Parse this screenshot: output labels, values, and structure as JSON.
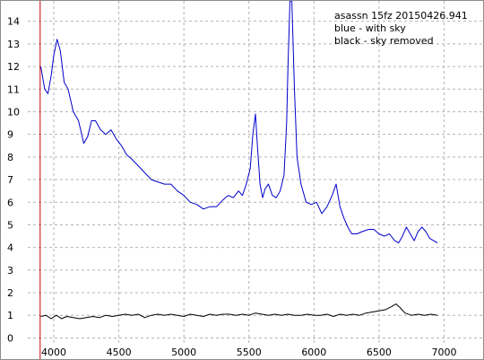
{
  "chart_data": {
    "type": "line",
    "title": "",
    "xlabel": "",
    "ylabel": "",
    "xlim": [
      3800,
      7300
    ],
    "ylim": [
      -0.3,
      14.9
    ],
    "xticks": [
      4000,
      4500,
      5000,
      5500,
      6000,
      6500,
      7000
    ],
    "xtick_labels": [
      "4000",
      "4500",
      "5000",
      "5500",
      "6000",
      "6500",
      "7000"
    ],
    "yticks": [
      0,
      1,
      2,
      3,
      4,
      5,
      6,
      7,
      8,
      9,
      10,
      11,
      12,
      13,
      14
    ],
    "ytick_labels": [
      "0",
      "1",
      "2",
      "3",
      "4",
      "5",
      "6",
      "7",
      "8",
      "9",
      "10",
      "11",
      "12",
      "13",
      "14"
    ],
    "grid": true,
    "vertical_marker": {
      "x": 3895,
      "color": "#cc0000"
    },
    "annotations": [
      "asassn 15fz  20150426.941",
      "blue - with sky",
      "black - sky removed"
    ],
    "legend_placement": "top-right",
    "series": [
      {
        "color": "#0000cc",
        "points": [
          [
            3900,
            12.0
          ],
          [
            3930,
            11.0
          ],
          [
            3955,
            10.8
          ],
          [
            3980,
            11.6
          ],
          [
            4000,
            12.5
          ],
          [
            4025,
            13.2
          ],
          [
            4050,
            12.7
          ],
          [
            4080,
            11.3
          ],
          [
            4110,
            11.0
          ],
          [
            4150,
            10.0
          ],
          [
            4190,
            9.6
          ],
          [
            4230,
            8.6
          ],
          [
            4260,
            8.9
          ],
          [
            4290,
            9.6
          ],
          [
            4320,
            9.6
          ],
          [
            4360,
            9.2
          ],
          [
            4400,
            9.0
          ],
          [
            4440,
            9.2
          ],
          [
            4480,
            8.8
          ],
          [
            4520,
            8.5
          ],
          [
            4560,
            8.1
          ],
          [
            4600,
            7.9
          ],
          [
            4650,
            7.6
          ],
          [
            4700,
            7.3
          ],
          [
            4750,
            7.0
          ],
          [
            4800,
            6.9
          ],
          [
            4850,
            6.8
          ],
          [
            4900,
            6.8
          ],
          [
            4950,
            6.5
          ],
          [
            5000,
            6.3
          ],
          [
            5050,
            6.0
          ],
          [
            5100,
            5.9
          ],
          [
            5150,
            5.7
          ],
          [
            5200,
            5.8
          ],
          [
            5250,
            5.8
          ],
          [
            5300,
            6.1
          ],
          [
            5340,
            6.3
          ],
          [
            5380,
            6.2
          ],
          [
            5420,
            6.5
          ],
          [
            5450,
            6.3
          ],
          [
            5480,
            6.8
          ],
          [
            5510,
            7.5
          ],
          [
            5530,
            9.0
          ],
          [
            5550,
            9.9
          ],
          [
            5565,
            8.5
          ],
          [
            5585,
            6.8
          ],
          [
            5605,
            6.2
          ],
          [
            5625,
            6.6
          ],
          [
            5650,
            6.8
          ],
          [
            5680,
            6.3
          ],
          [
            5710,
            6.2
          ],
          [
            5740,
            6.5
          ],
          [
            5770,
            7.2
          ],
          [
            5790,
            9.5
          ],
          [
            5800,
            12.0
          ],
          [
            5815,
            14.9
          ],
          [
            5830,
            14.9
          ],
          [
            5850,
            11.0
          ],
          [
            5870,
            8.0
          ],
          [
            5900,
            6.8
          ],
          [
            5940,
            6.0
          ],
          [
            5980,
            5.9
          ],
          [
            6020,
            6.0
          ],
          [
            6060,
            5.5
          ],
          [
            6100,
            5.8
          ],
          [
            6140,
            6.3
          ],
          [
            6170,
            6.8
          ],
          [
            6200,
            5.8
          ],
          [
            6230,
            5.3
          ],
          [
            6260,
            4.9
          ],
          [
            6290,
            4.6
          ],
          [
            6330,
            4.6
          ],
          [
            6370,
            4.7
          ],
          [
            6420,
            4.8
          ],
          [
            6460,
            4.8
          ],
          [
            6500,
            4.6
          ],
          [
            6540,
            4.5
          ],
          [
            6580,
            4.6
          ],
          [
            6620,
            4.3
          ],
          [
            6650,
            4.2
          ],
          [
            6680,
            4.5
          ],
          [
            6710,
            4.9
          ],
          [
            6740,
            4.6
          ],
          [
            6770,
            4.3
          ],
          [
            6800,
            4.7
          ],
          [
            6830,
            4.9
          ],
          [
            6860,
            4.7
          ],
          [
            6890,
            4.4
          ],
          [
            6920,
            4.3
          ],
          [
            6950,
            4.2
          ]
        ]
      },
      {
        "color": "#000000",
        "points": [
          [
            3900,
            0.95
          ],
          [
            3940,
            1.0
          ],
          [
            3980,
            0.85
          ],
          [
            4020,
            1.0
          ],
          [
            4060,
            0.85
          ],
          [
            4100,
            0.95
          ],
          [
            4150,
            0.9
          ],
          [
            4200,
            0.85
          ],
          [
            4250,
            0.9
          ],
          [
            4300,
            0.95
          ],
          [
            4350,
            0.9
          ],
          [
            4400,
            1.0
          ],
          [
            4450,
            0.95
          ],
          [
            4500,
            1.0
          ],
          [
            4550,
            1.05
          ],
          [
            4600,
            1.0
          ],
          [
            4650,
            1.05
          ],
          [
            4700,
            0.9
          ],
          [
            4750,
            1.0
          ],
          [
            4800,
            1.05
          ],
          [
            4850,
            1.0
          ],
          [
            4900,
            1.05
          ],
          [
            4950,
            1.0
          ],
          [
            5000,
            0.95
          ],
          [
            5050,
            1.05
          ],
          [
            5100,
            1.0
          ],
          [
            5150,
            0.95
          ],
          [
            5200,
            1.05
          ],
          [
            5250,
            1.0
          ],
          [
            5300,
            1.05
          ],
          [
            5350,
            1.05
          ],
          [
            5400,
            1.0
          ],
          [
            5450,
            1.05
          ],
          [
            5500,
            1.0
          ],
          [
            5550,
            1.1
          ],
          [
            5600,
            1.05
          ],
          [
            5650,
            1.0
          ],
          [
            5700,
            1.05
          ],
          [
            5750,
            1.0
          ],
          [
            5800,
            1.05
          ],
          [
            5850,
            1.0
          ],
          [
            5900,
            1.0
          ],
          [
            5950,
            1.05
          ],
          [
            6000,
            1.0
          ],
          [
            6050,
            1.0
          ],
          [
            6100,
            1.05
          ],
          [
            6150,
            0.95
          ],
          [
            6200,
            1.05
          ],
          [
            6250,
            1.0
          ],
          [
            6300,
            1.05
          ],
          [
            6350,
            1.0
          ],
          [
            6400,
            1.1
          ],
          [
            6450,
            1.15
          ],
          [
            6500,
            1.2
          ],
          [
            6550,
            1.25
          ],
          [
            6600,
            1.4
          ],
          [
            6630,
            1.5
          ],
          [
            6660,
            1.35
          ],
          [
            6700,
            1.1
          ],
          [
            6750,
            1.0
          ],
          [
            6800,
            1.05
          ],
          [
            6850,
            1.0
          ],
          [
            6900,
            1.05
          ],
          [
            6950,
            1.0
          ]
        ]
      }
    ]
  }
}
